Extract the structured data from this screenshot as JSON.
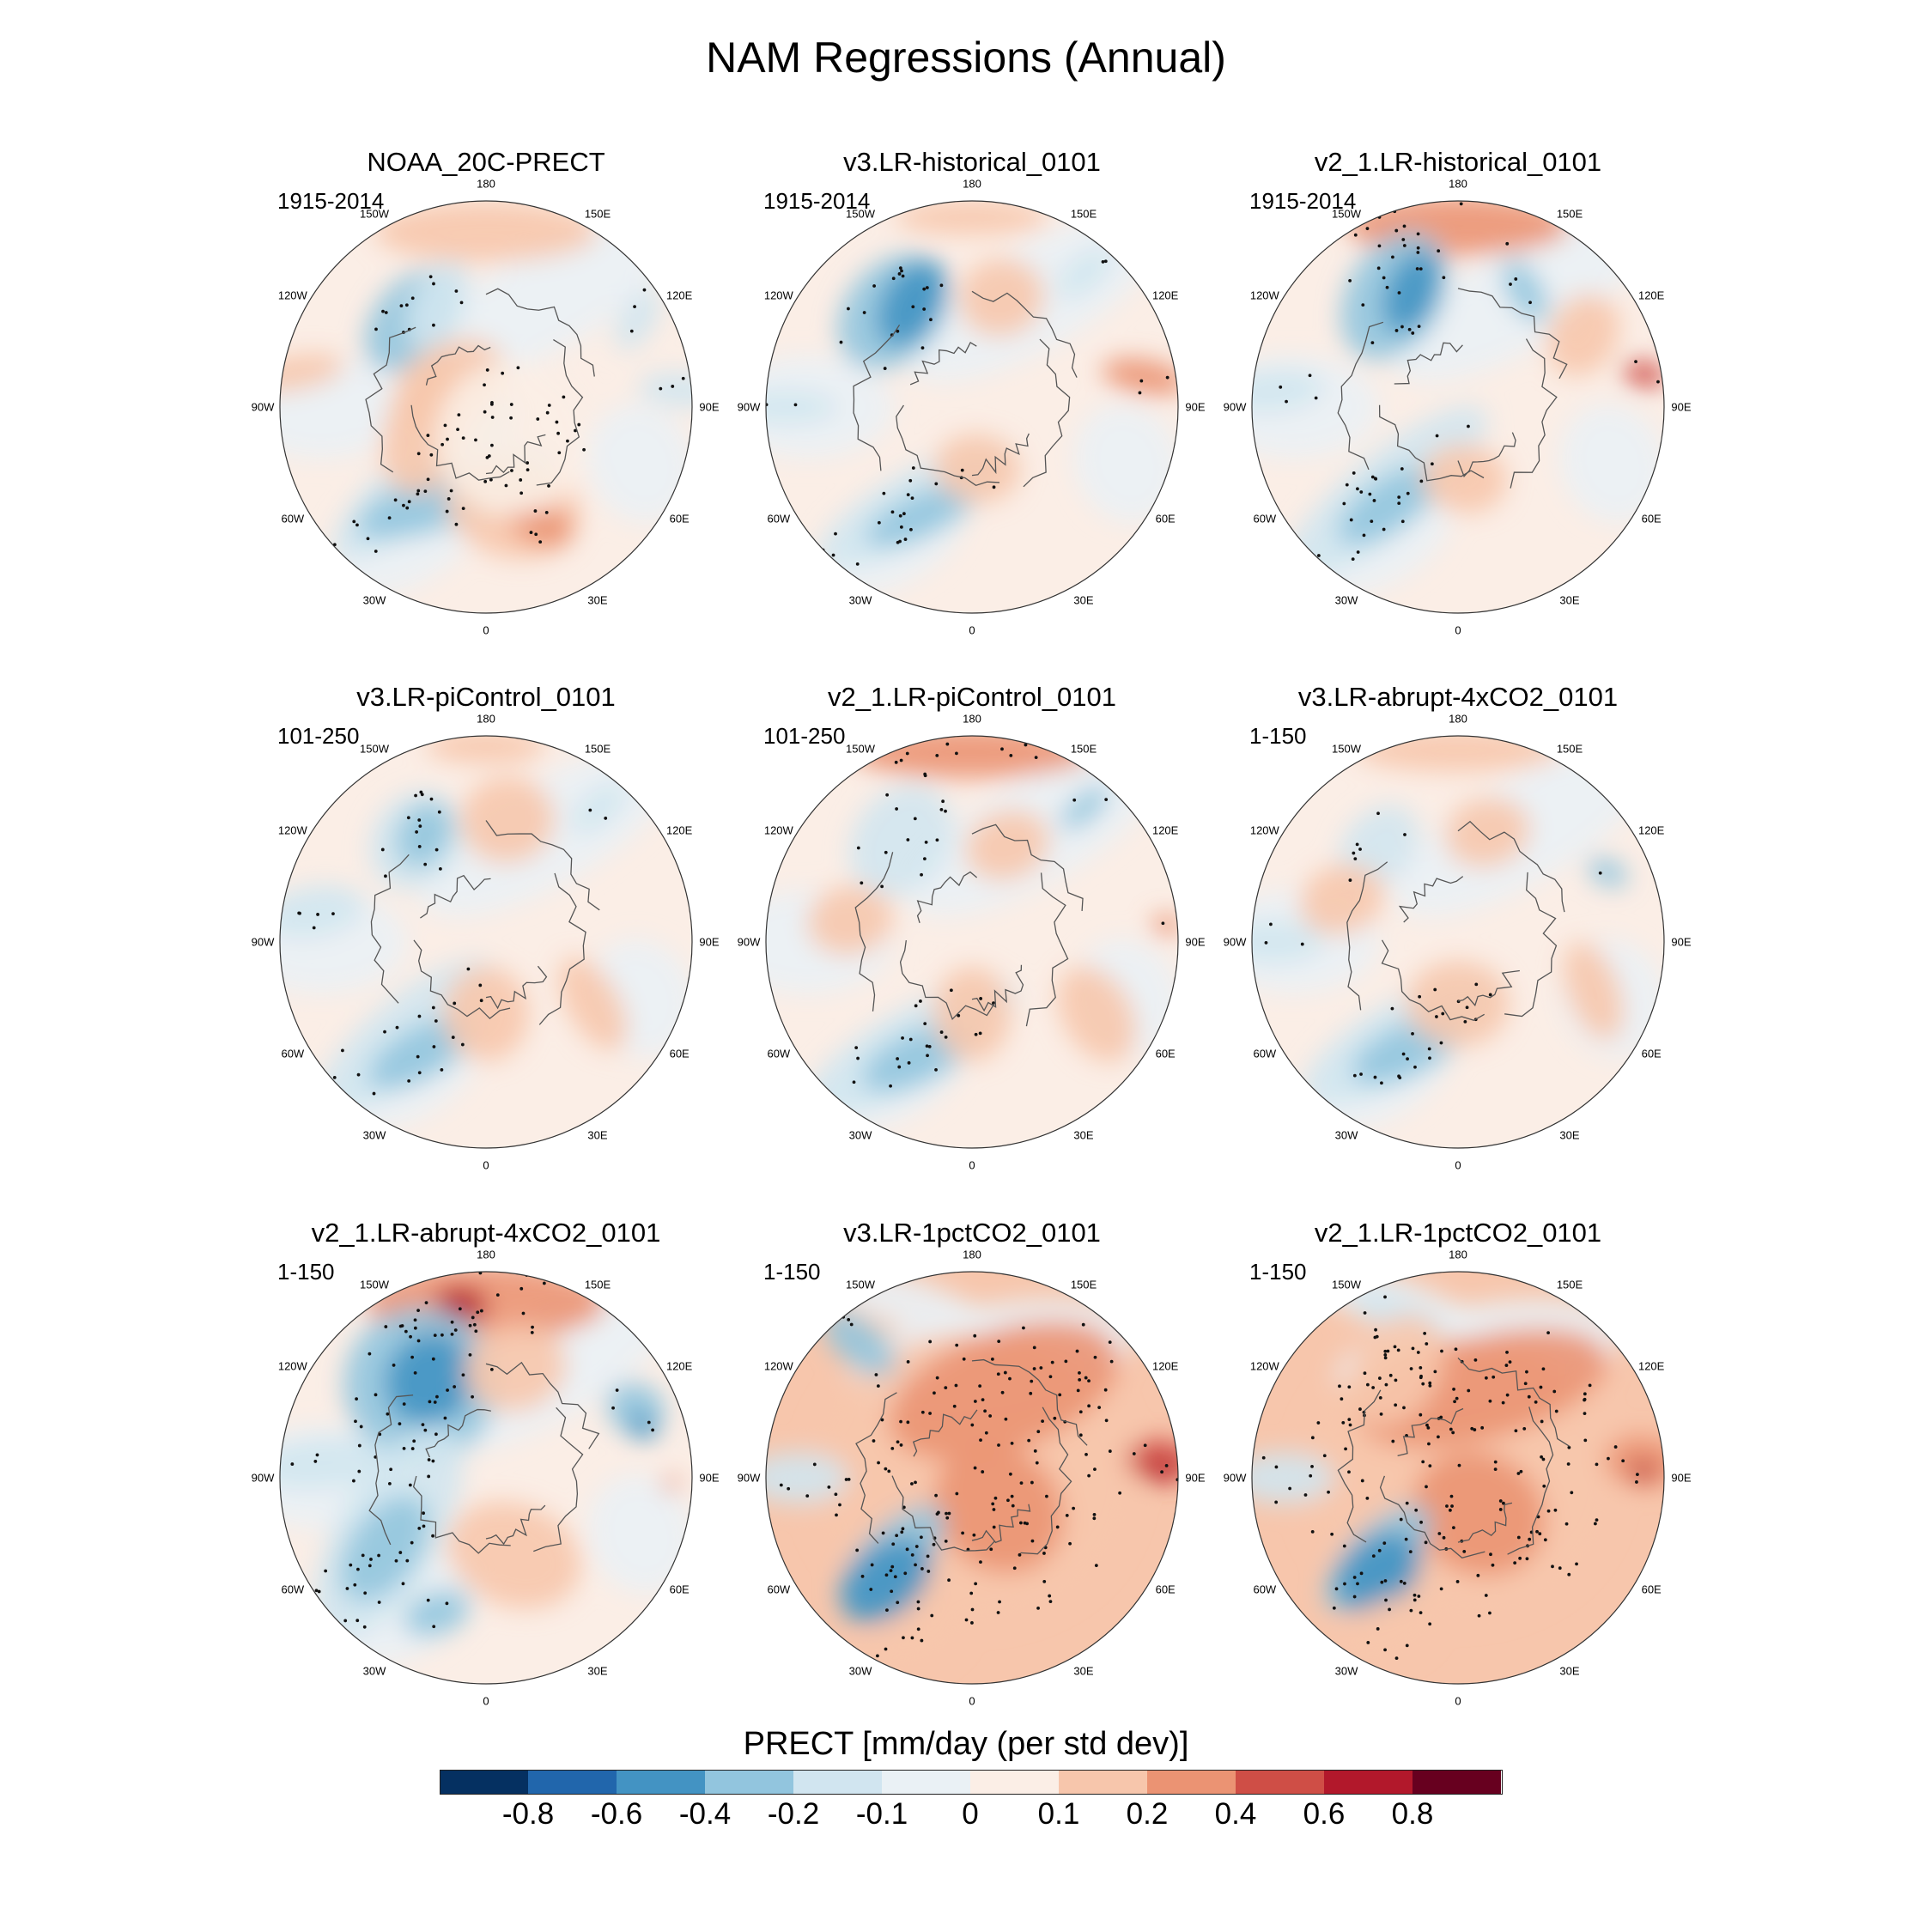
{
  "title": "NAM Regressions (Annual)",
  "panels": [
    {
      "title": "NOAA_20C-PRECT",
      "period": "1915-2014"
    },
    {
      "title": "v3.LR-historical_0101",
      "period": "1915-2014"
    },
    {
      "title": "v2_1.LR-historical_0101",
      "period": "1915-2014"
    },
    {
      "title": "v3.LR-piControl_0101",
      "period": "101-250"
    },
    {
      "title": "v2_1.LR-piControl_0101",
      "period": "101-250"
    },
    {
      "title": "v3.LR-abrupt-4xCO2_0101",
      "period": "1-150"
    },
    {
      "title": "v2_1.LR-abrupt-4xCO2_0101",
      "period": "1-150"
    },
    {
      "title": "v3.LR-1pctCO2_0101",
      "period": "1-150"
    },
    {
      "title": "v2_1.LR-1pctCO2_0101",
      "period": "1-150"
    }
  ],
  "longitude_labels": [
    "180",
    "150E",
    "120E",
    "90E",
    "60E",
    "30E",
    "0",
    "30W",
    "60W",
    "90W",
    "120W",
    "150W"
  ],
  "colorbar": {
    "title": "PRECT [mm/day (per std dev)]",
    "tick_labels": [
      "-0.8",
      "-0.6",
      "-0.4",
      "-0.2",
      "-0.1",
      "0",
      "0.1",
      "0.2",
      "0.4",
      "0.6",
      "0.8"
    ],
    "colors": [
      "#053061",
      "#2166ac",
      "#4393c3",
      "#92c5de",
      "#d1e5f0",
      "#eaf1f5",
      "#fbeee6",
      "#f7c6ac",
      "#eb9373",
      "#cf4e46",
      "#b2182b",
      "#67001f"
    ]
  }
}
